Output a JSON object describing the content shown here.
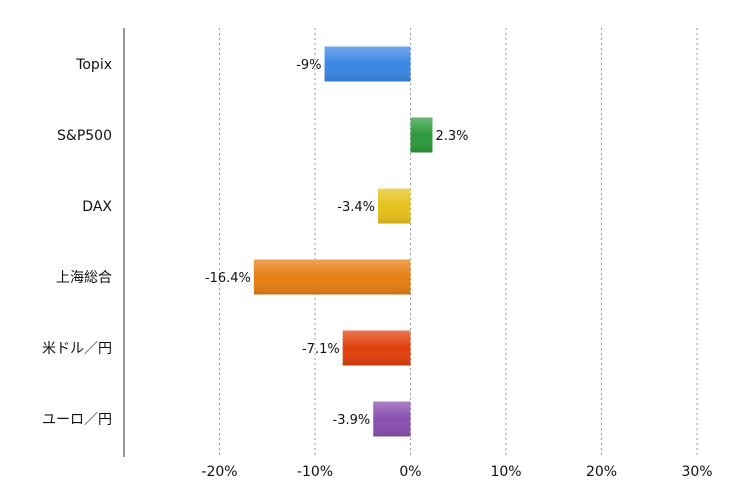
{
  "chart_data": {
    "type": "bar",
    "orientation": "horizontal",
    "categories": [
      "Topix",
      "S&P500",
      "DAX",
      "上海総合",
      "米ドル／円",
      "ユーロ／円"
    ],
    "values": [
      -9,
      2.3,
      -3.4,
      -16.4,
      -7.1,
      -3.9
    ],
    "data_labels": [
      "-9%",
      "2.3%",
      "-3.4%",
      "-16.4%",
      "-7.1%",
      "-3.9%"
    ],
    "colors": [
      "#3a87e4",
      "#2e9a3c",
      "#e6c21c",
      "#e67f14",
      "#e0400c",
      "#8a4fb0"
    ],
    "xticks": [
      -20,
      -10,
      0,
      10,
      20,
      30
    ],
    "xtick_labels": [
      "-20%",
      "-10%",
      "0%",
      "10%",
      "20%",
      "30%"
    ],
    "xlim": [
      -30,
      30
    ],
    "grid": "vertical-dotted",
    "title": "",
    "xlabel": "",
    "ylabel": ""
  }
}
